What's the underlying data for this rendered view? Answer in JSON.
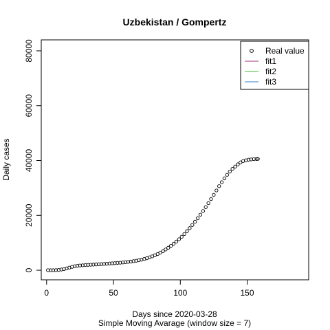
{
  "chart_data": {
    "type": "scatter",
    "title": "Uzbekistan / Gompertz",
    "xlabel": "Days since 2020-03-28",
    "subtitle": "Simple Moving Avarage (window size = 7)",
    "ylabel": "Daily cases",
    "xlim": [
      -4,
      196
    ],
    "ylim": [
      -3500,
      84000
    ],
    "xticks": [
      0,
      50,
      100,
      150
    ],
    "yticks": [
      0,
      20000,
      40000,
      60000,
      80000
    ],
    "point_marker": "open-circle",
    "legend": {
      "position": "top-right",
      "entries": [
        {
          "label": "Real value",
          "symbol": "circle",
          "color": "#000000"
        },
        {
          "label": "fit1",
          "symbol": "line",
          "color": "#a0357c"
        },
        {
          "label": "fit2",
          "symbol": "line",
          "color": "#44b83a"
        },
        {
          "label": "fit3",
          "symbol": "line",
          "color": "#2f7bd9"
        }
      ]
    },
    "series": [
      {
        "name": "Real value",
        "x": [
          1,
          3,
          5,
          7,
          9,
          11,
          13,
          15,
          17,
          19,
          21,
          23,
          25,
          27,
          29,
          31,
          33,
          35,
          37,
          39,
          41,
          43,
          45,
          47,
          49,
          51,
          53,
          55,
          57,
          59,
          61,
          63,
          65,
          67,
          69,
          71,
          73,
          75,
          77,
          79,
          81,
          83,
          85,
          87,
          89,
          91,
          93,
          95,
          97,
          99,
          101,
          103,
          105,
          107,
          109,
          111,
          113,
          115,
          117,
          119,
          121,
          123,
          125,
          127,
          129,
          131,
          133,
          135,
          137,
          139,
          141,
          143,
          145,
          147,
          149,
          151,
          153,
          155,
          157,
          158
        ],
        "values": [
          0,
          0,
          0,
          50,
          100,
          250,
          420,
          650,
          950,
          1230,
          1450,
          1600,
          1720,
          1800,
          1880,
          1950,
          2000,
          2060,
          2120,
          2180,
          2240,
          2300,
          2370,
          2440,
          2510,
          2580,
          2660,
          2740,
          2830,
          2930,
          3040,
          3160,
          3300,
          3460,
          3640,
          3850,
          4100,
          4380,
          4700,
          5050,
          5450,
          5900,
          6400,
          6950,
          7550,
          8200,
          8900,
          9650,
          10450,
          11300,
          12200,
          13200,
          14250,
          15350,
          16500,
          17700,
          18950,
          20250,
          21600,
          23000,
          24450,
          25950,
          27500,
          29100,
          30650,
          32100,
          33500,
          34800,
          35950,
          36950,
          37800,
          38600,
          39300,
          39800,
          40100,
          40300,
          40400,
          40500,
          40550,
          40600
        ]
      }
    ]
  }
}
